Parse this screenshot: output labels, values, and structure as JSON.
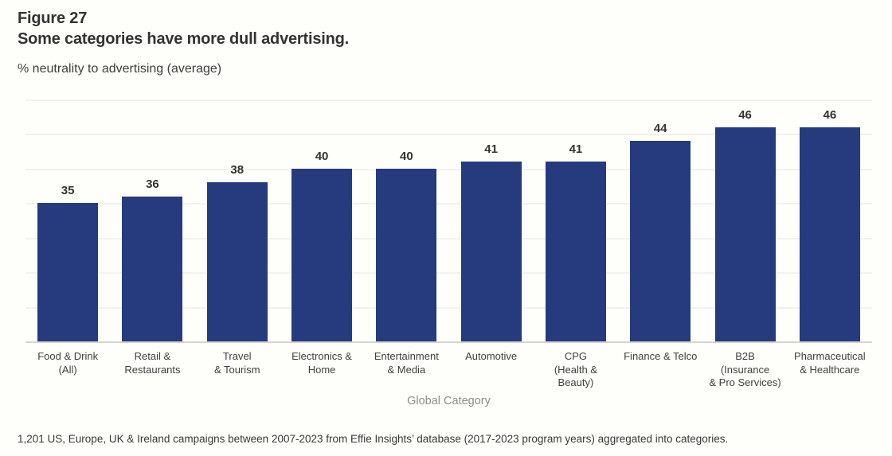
{
  "figure": {
    "label": "Figure 27",
    "title": "Some categories have more dull advertising.",
    "subtitle": "% neutrality to advertising (average)",
    "footnote": "1,201 US, Europe, UK & Ireland campaigns between 2007-2023 from Effie Insights’ database (2017-2023 program years) aggregated into categories."
  },
  "chart_data": {
    "type": "bar",
    "title": "Some categories have more dull advertising.",
    "metric_label": "% neutrality to advertising (average)",
    "categories": [
      "Food & Drink\n(All)",
      "Retail &\nRestaurants",
      "Travel\n& Tourism",
      "Electronics &\nHome",
      "Entertainment\n& Media",
      "Automotive",
      "CPG\n(Health &\nBeauty)",
      "Finance & Telco",
      "B2B\n(Insurance\n& Pro Services)",
      "Pharmaceutical\n& Healthcare"
    ],
    "values": [
      35,
      36,
      38,
      40,
      40,
      41,
      41,
      44,
      46,
      46
    ],
    "xlabel": "Global Category",
    "ylabel": "% neutrality to advertising (average)",
    "ylim": [
      15,
      50
    ],
    "gridline_step": 5,
    "grid": true,
    "legend": "none",
    "data_labels": true,
    "bar_color": "#253B7E",
    "gridline_color": "#F2F1ED",
    "baseline_color": "#D5D4CE"
  }
}
